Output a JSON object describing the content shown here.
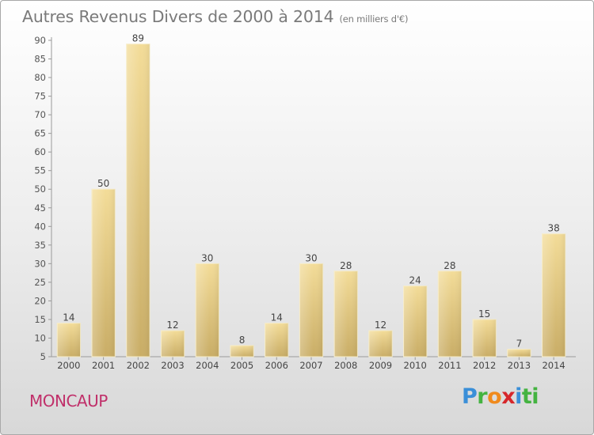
{
  "chart_data": {
    "type": "bar",
    "title": "Autres Revenus Divers de 2000 à 2014",
    "subtitle": "(en milliers d'€)",
    "categories": [
      "2000",
      "2001",
      "2002",
      "2003",
      "2004",
      "2005",
      "2006",
      "2007",
      "2008",
      "2009",
      "2010",
      "2011",
      "2012",
      "2013",
      "2014"
    ],
    "values": [
      14,
      50,
      89,
      12,
      30,
      8,
      14,
      30,
      28,
      12,
      24,
      28,
      15,
      7,
      38
    ],
    "ylim": [
      5,
      90
    ],
    "yticks": [
      5,
      10,
      15,
      20,
      25,
      30,
      35,
      40,
      45,
      50,
      55,
      60,
      65,
      70,
      75,
      80,
      85,
      90
    ],
    "grid": false,
    "xlabel": "",
    "ylabel": "",
    "bar_color": "#e8cf88"
  },
  "footer": {
    "place": "MONCAUP",
    "brand_letters": [
      "P",
      "r",
      "o",
      "x",
      "i",
      "t",
      "i"
    ]
  }
}
